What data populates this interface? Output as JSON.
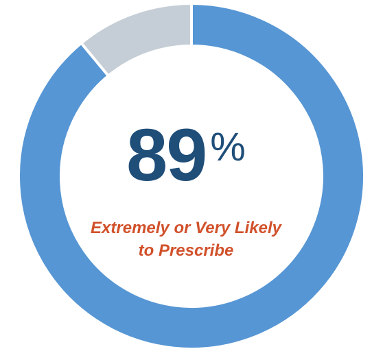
{
  "chart_data": {
    "type": "pie",
    "style": "donut",
    "slices": [
      {
        "label": "Extremely or Very Likely to Prescribe",
        "value": 89,
        "color": "#5796d4"
      },
      {
        "label": "",
        "value": 11,
        "color": "#c5ced6"
      }
    ],
    "center_value": "89",
    "center_unit": "%",
    "caption_lines": [
      "Extremely or Very Likely",
      "to Prescribe"
    ]
  },
  "colors": {
    "primary_value": "#1f4e79",
    "caption": "#d1512b",
    "background": "#ffffff"
  }
}
